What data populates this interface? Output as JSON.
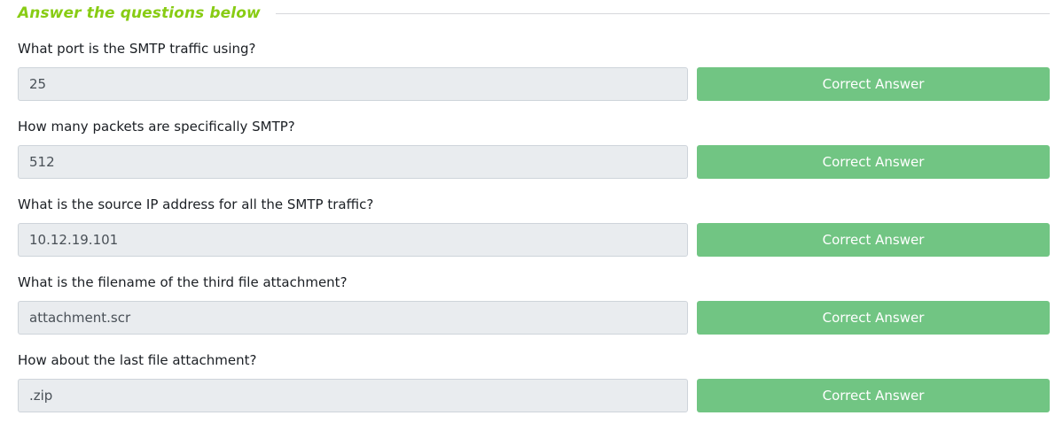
{
  "header": {
    "title": "Answer the questions below"
  },
  "questions": [
    {
      "text": "What port is the SMTP traffic using?",
      "answer": "25",
      "button_label": "Correct Answer"
    },
    {
      "text": "How many packets are specifically SMTP?",
      "answer": "512",
      "button_label": "Correct Answer"
    },
    {
      "text": "What is the source IP address for all the SMTP traffic?",
      "answer": "10.12.19.101",
      "button_label": "Correct Answer"
    },
    {
      "text": "What is the filename of the third file attachment?",
      "answer": "attachment.scr",
      "button_label": "Correct Answer"
    },
    {
      "text": "How about the last file attachment?",
      "answer": ".zip",
      "button_label": "Correct Answer"
    }
  ],
  "colors": {
    "header_accent": "#88cc14",
    "correct_button": "#71c583",
    "input_background": "#e9ecef"
  }
}
